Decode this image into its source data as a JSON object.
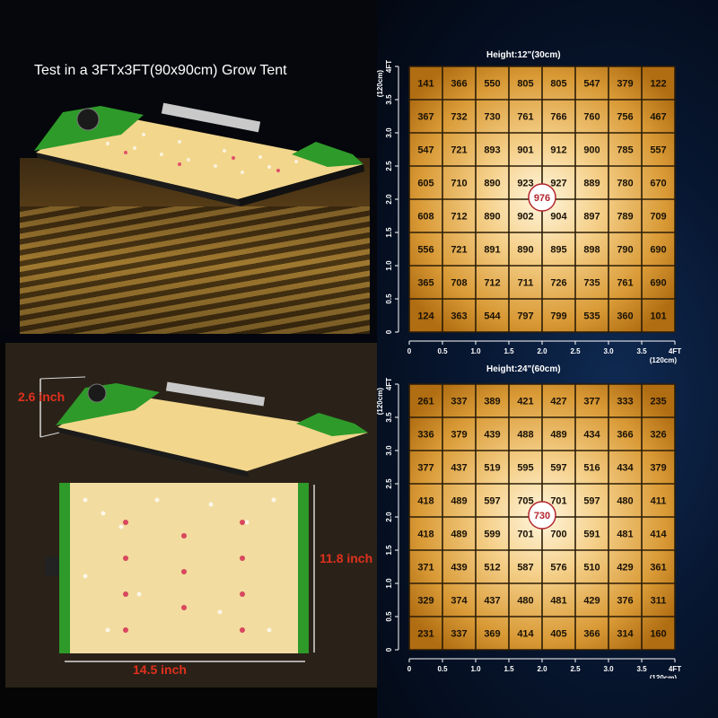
{
  "photo": {
    "caption": "Test in a 3FTx3FT(90x90cm) Grow Tent"
  },
  "dimensions": {
    "height": "2.6 inch",
    "width": "14.5 inch",
    "length": "11.8 inch"
  },
  "colors": {
    "panel_green": "#2e9a2a",
    "grid_line": "#2b1d08",
    "highlight_circle": "#b3262d",
    "dimension_text": "#e0301e"
  },
  "chart_data": [
    {
      "type": "heatmap",
      "title": "Height:12\"(30cm)",
      "x_ticks": [
        "0",
        "0.5",
        "1.0",
        "1.5",
        "2.0",
        "2.5",
        "3.0",
        "3.5",
        "4FT"
      ],
      "y_ticks": [
        "0",
        "0.5",
        "1.0",
        "1.5",
        "2.0",
        "2.5",
        "3.0",
        "3.5",
        "4FT"
      ],
      "axis_unit": "(120cm)",
      "grid": [
        [
          141,
          366,
          550,
          805,
          805,
          547,
          379,
          122
        ],
        [
          367,
          732,
          730,
          761,
          766,
          760,
          756,
          467
        ],
        [
          547,
          721,
          893,
          901,
          912,
          900,
          785,
          557
        ],
        [
          605,
          710,
          890,
          923,
          927,
          889,
          780,
          670
        ],
        [
          608,
          712,
          890,
          902,
          904,
          897,
          789,
          709
        ],
        [
          556,
          721,
          891,
          890,
          895,
          898,
          790,
          690
        ],
        [
          365,
          708,
          712,
          711,
          726,
          735,
          761,
          690
        ],
        [
          124,
          363,
          544,
          797,
          799,
          535,
          360,
          101
        ]
      ],
      "center_value": "976"
    },
    {
      "type": "heatmap",
      "title": "Height:24\"(60cm)",
      "x_ticks": [
        "0",
        "0.5",
        "1.0",
        "1.5",
        "2.0",
        "2.5",
        "3.0",
        "3.5",
        "4FT"
      ],
      "y_ticks": [
        "0",
        "0.5",
        "1.0",
        "1.5",
        "2.0",
        "2.5",
        "3.0",
        "3.5",
        "4FT"
      ],
      "axis_unit": "(120cm)",
      "grid": [
        [
          261,
          337,
          389,
          421,
          427,
          377,
          333,
          235
        ],
        [
          336,
          379,
          439,
          488,
          489,
          434,
          366,
          326
        ],
        [
          377,
          437,
          519,
          595,
          597,
          516,
          434,
          379
        ],
        [
          418,
          489,
          597,
          705,
          701,
          597,
          480,
          411
        ],
        [
          418,
          489,
          599,
          701,
          700,
          591,
          481,
          414
        ],
        [
          371,
          439,
          512,
          587,
          576,
          510,
          429,
          361
        ],
        [
          329,
          374,
          437,
          480,
          481,
          429,
          376,
          311
        ],
        [
          231,
          337,
          369,
          414,
          405,
          366,
          314,
          160
        ]
      ],
      "center_value": "730"
    }
  ]
}
